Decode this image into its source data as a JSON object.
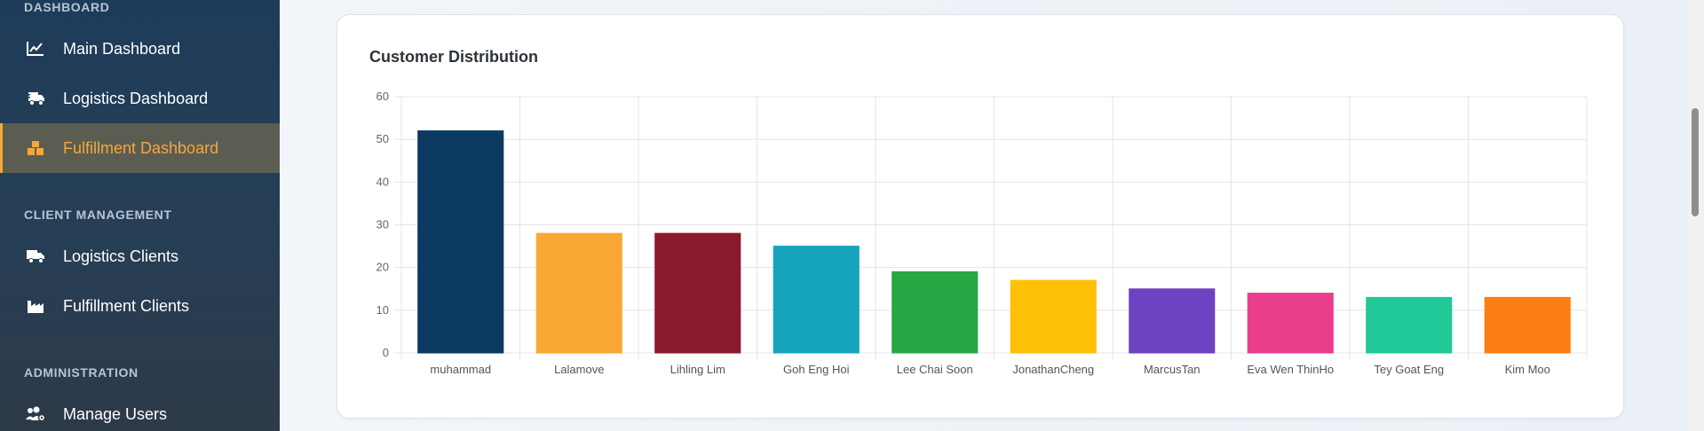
{
  "sidebar": {
    "sections": [
      {
        "title": "DASHBOARD",
        "items": [
          {
            "label": "Main Dashboard",
            "icon": "chart-line-icon",
            "active": false
          },
          {
            "label": "Logistics Dashboard",
            "icon": "truck-fast-icon",
            "active": false
          },
          {
            "label": "Fulfillment Dashboard",
            "icon": "boxes-icon",
            "active": true
          }
        ]
      },
      {
        "title": "CLIENT MANAGEMENT",
        "items": [
          {
            "label": "Logistics Clients",
            "icon": "truck-icon",
            "active": false
          },
          {
            "label": "Fulfillment Clients",
            "icon": "industry-icon",
            "active": false
          }
        ]
      },
      {
        "title": "ADMINISTRATION",
        "items": [
          {
            "label": "Manage Users",
            "icon": "users-gear-icon",
            "active": false
          }
        ]
      }
    ],
    "accent_color": "#f5a83a"
  },
  "card": {
    "title": "Customer Distribution"
  },
  "chart_data": {
    "type": "bar",
    "title": "Customer Distribution",
    "categories": [
      "muhammad",
      "Lalamove",
      "Lihling Lim",
      "Goh Eng Hoi",
      "Lee Chai Soon",
      "JonathanCheng",
      "MarcusTan",
      "Eva Wen ThinHo",
      "Tey Goat Eng",
      "Kim Moo"
    ],
    "values": [
      52,
      28,
      28,
      25,
      19,
      17,
      15,
      14,
      13,
      13
    ],
    "colors": [
      "#0c3a63",
      "#f9a836",
      "#8b1a2e",
      "#14a3bb",
      "#28a745",
      "#ffc107",
      "#6f42c1",
      "#e83e8c",
      "#20c997",
      "#fd7e14"
    ],
    "ylim": [
      0,
      60
    ],
    "yticks": [
      0,
      10,
      20,
      30,
      40,
      50,
      60
    ],
    "grid": true,
    "legend": false,
    "xlabel": "",
    "ylabel": ""
  }
}
